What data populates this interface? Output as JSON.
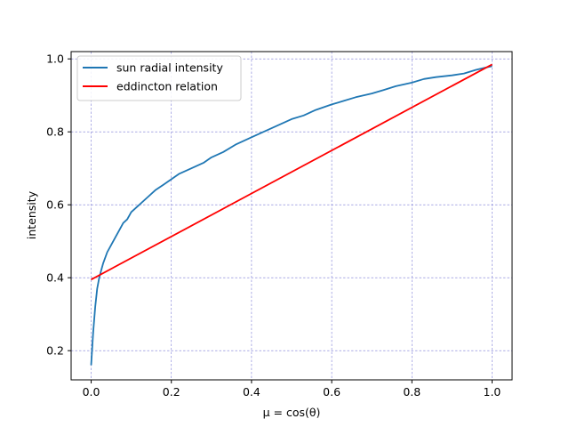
{
  "chart_data": {
    "type": "line",
    "title": "",
    "xlabel": "μ = cos(θ)",
    "ylabel": "intensity",
    "xlim": [
      -0.05,
      1.05
    ],
    "ylim": [
      0.12,
      1.02
    ],
    "xticks": [
      0.0,
      0.2,
      0.4,
      0.6,
      0.8,
      1.0
    ],
    "yticks": [
      0.2,
      0.4,
      0.6,
      0.8,
      1.0
    ],
    "xtick_labels": [
      "0.0",
      "0.2",
      "0.4",
      "0.6",
      "0.8",
      "1.0"
    ],
    "ytick_labels": [
      "0.2",
      "0.4",
      "0.6",
      "0.8",
      "1.0"
    ],
    "grid": true,
    "grid_color": "#7b7bd6",
    "legend_position": "upper-left",
    "series": [
      {
        "name": "sun radial intensity",
        "color": "#1f77b4",
        "x": [
          0.0,
          0.005,
          0.01,
          0.015,
          0.02,
          0.025,
          0.03,
          0.04,
          0.05,
          0.06,
          0.07,
          0.08,
          0.09,
          0.1,
          0.12,
          0.14,
          0.16,
          0.18,
          0.2,
          0.22,
          0.25,
          0.28,
          0.3,
          0.33,
          0.36,
          0.4,
          0.43,
          0.46,
          0.5,
          0.53,
          0.56,
          0.6,
          0.63,
          0.66,
          0.7,
          0.73,
          0.76,
          0.8,
          0.83,
          0.86,
          0.9,
          0.93,
          0.96,
          0.98,
          1.0
        ],
        "y": [
          0.16,
          0.25,
          0.32,
          0.37,
          0.4,
          0.42,
          0.44,
          0.47,
          0.49,
          0.51,
          0.53,
          0.55,
          0.56,
          0.58,
          0.6,
          0.62,
          0.64,
          0.655,
          0.67,
          0.685,
          0.7,
          0.715,
          0.73,
          0.745,
          0.765,
          0.785,
          0.8,
          0.815,
          0.835,
          0.845,
          0.86,
          0.875,
          0.885,
          0.895,
          0.905,
          0.915,
          0.925,
          0.935,
          0.945,
          0.95,
          0.955,
          0.96,
          0.97,
          0.975,
          0.98
        ]
      },
      {
        "name": "eddincton relation",
        "color": "#ff0000",
        "x": [
          0.0,
          1.0
        ],
        "y": [
          0.395,
          0.985
        ]
      }
    ]
  }
}
